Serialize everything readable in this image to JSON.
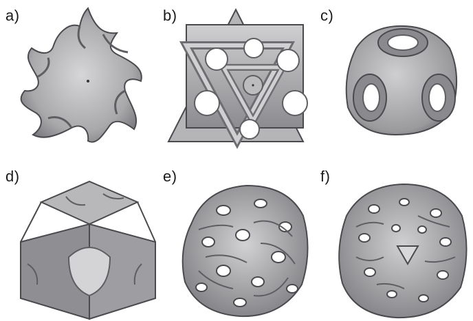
{
  "panels": [
    {
      "label": "a)",
      "shape": "gyroid-unit-cell"
    },
    {
      "label": "b)",
      "shape": "octet-triangle-unit-cell"
    },
    {
      "label": "c)",
      "shape": "schwarz-p-unit-cell"
    },
    {
      "label": "d)",
      "shape": "neovius-solid-unit-cell"
    },
    {
      "label": "e)",
      "shape": "gyroid-lattice-block"
    },
    {
      "label": "f)",
      "shape": "diamond-lattice-block"
    }
  ],
  "colors": {
    "surface_light": "#c8c8ca",
    "surface_mid": "#9a9a9d",
    "surface_dark": "#5e5e62",
    "edge": "#4a4a4e",
    "background": "#ffffff"
  }
}
